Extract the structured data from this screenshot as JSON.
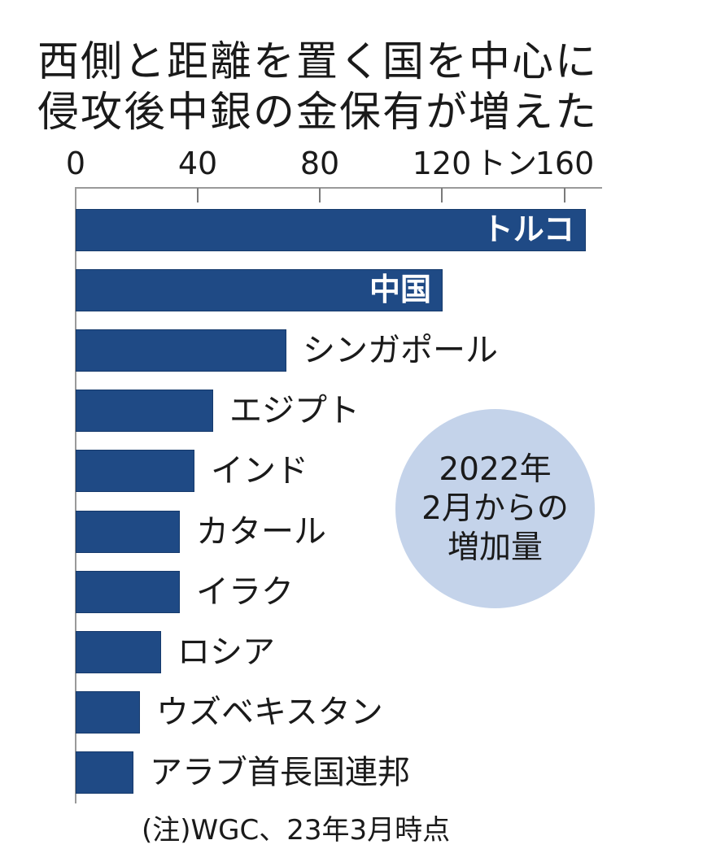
{
  "title": {
    "line1": "西側と距離を置く国を中心に",
    "line2": "侵攻後中銀の金保有が増えた"
  },
  "axis": {
    "ticks": [
      "0",
      "40",
      "80",
      "120",
      "160"
    ],
    "unit": "トン"
  },
  "annotation": {
    "line1": "2022年",
    "line2": "2月からの",
    "line3": "増加量"
  },
  "footnote": "(注)WGC、23年3月時点",
  "colors": {
    "bar": "#1f4a85",
    "annotation_circle": "#c4d3ea",
    "axis": "#9a9a9a"
  },
  "chart_data": {
    "type": "bar",
    "orientation": "horizontal",
    "title": "西側と距離を置く国を中心に侵攻後中銀の金保有が増えた",
    "xlabel": "トン",
    "ylabel": "",
    "xlim": [
      0,
      160
    ],
    "xticks": [
      0,
      40,
      80,
      120,
      160
    ],
    "grid": false,
    "legend": "none",
    "annotation": "2022年2月からの増加量",
    "note": "(注)WGC、23年3月時点",
    "categories": [
      "トルコ",
      "中国",
      "シンガポール",
      "エジプト",
      "インド",
      "カタール",
      "イラク",
      "ロシア",
      "ウズベキスタン",
      "アラブ首長国連邦"
    ],
    "values": [
      167,
      120,
      69,
      45,
      39,
      34,
      34,
      28,
      21,
      19
    ]
  }
}
